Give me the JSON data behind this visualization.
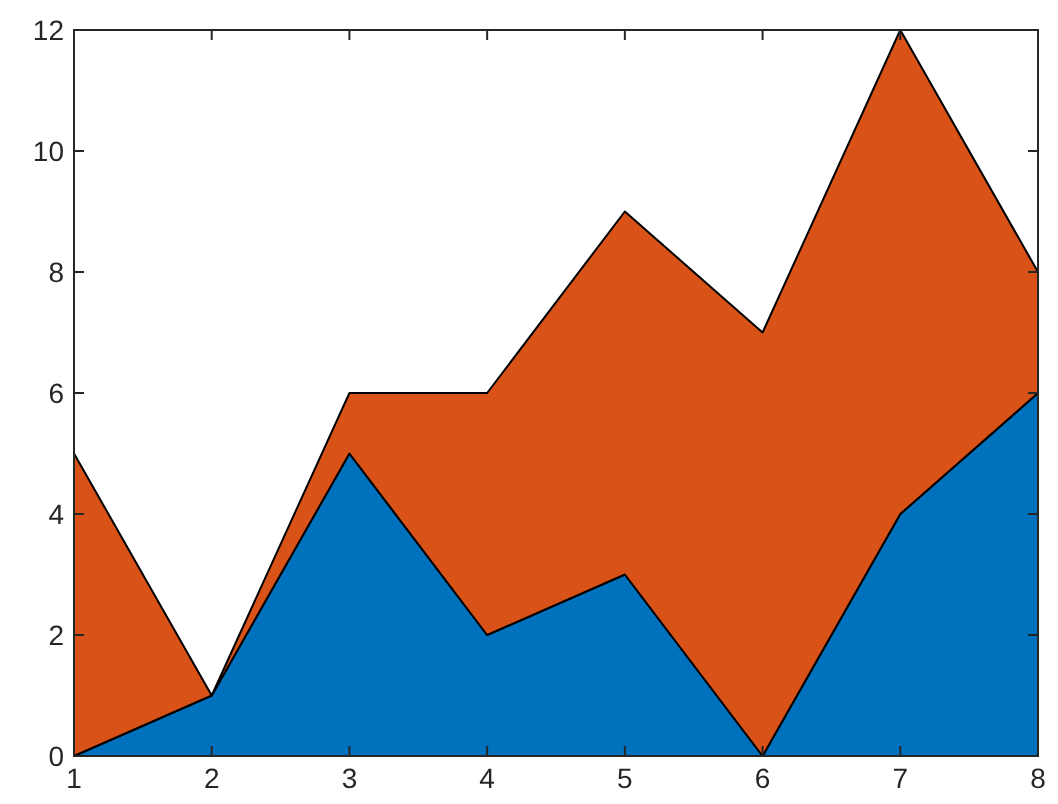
{
  "chart_data": {
    "type": "area",
    "stacked": true,
    "x": [
      1,
      2,
      3,
      4,
      5,
      6,
      7,
      8
    ],
    "series": [
      {
        "color": "#0072bd",
        "values": [
          0,
          1,
          5,
          2,
          3,
          0,
          4,
          6
        ]
      },
      {
        "color": "#d95319",
        "values": [
          5,
          0,
          1,
          4,
          6,
          7,
          8,
          2
        ]
      }
    ],
    "xlim": [
      1,
      8
    ],
    "xticks": [
      1,
      2,
      3,
      4,
      5,
      6,
      7,
      8
    ],
    "ylim": [
      0,
      12
    ],
    "yticks": [
      0,
      2,
      4,
      6,
      8,
      10,
      12
    ],
    "grid": false
  }
}
